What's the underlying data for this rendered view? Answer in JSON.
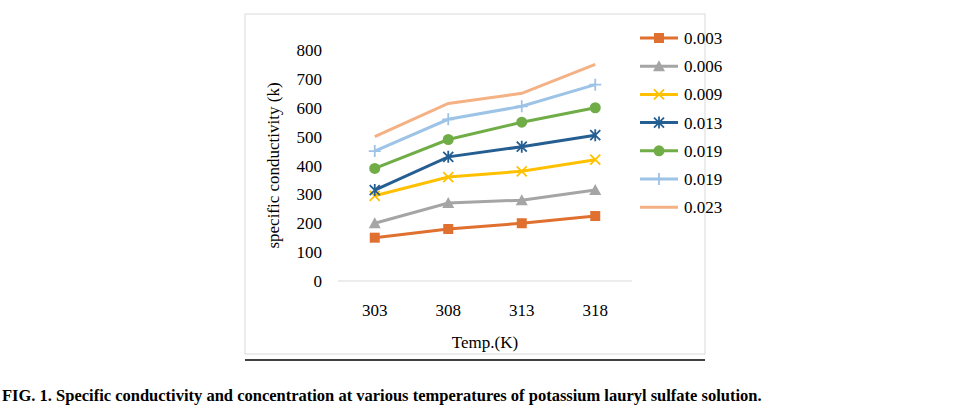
{
  "chart_data": {
    "type": "line",
    "title": "FIG. 1. Specific conductivity and concentration at various temperatures of potassium lauryl sulfate solution.",
    "x_label": "Temp.(K)",
    "y_label": "specific conductivity (k)",
    "categories": [
      "303",
      "308",
      "313",
      "318"
    ],
    "ylim": [
      0,
      800
    ],
    "yticks": [
      0,
      100,
      200,
      300,
      400,
      500,
      600,
      700,
      800
    ],
    "grid": false,
    "legend": "right",
    "series": [
      {
        "name": "0.003",
        "color": "#e07030",
        "marker": "square",
        "values": [
          150,
          180,
          200,
          225
        ]
      },
      {
        "name": "0.006",
        "color": "#a5a5a5",
        "marker": "triangle",
        "values": [
          200,
          270,
          280,
          315
        ]
      },
      {
        "name": "0.009",
        "color": "#ffc000",
        "marker": "x",
        "values": [
          295,
          360,
          380,
          420
        ]
      },
      {
        "name": "0.013",
        "color": "#255e91",
        "marker": "star",
        "values": [
          315,
          430,
          465,
          505
        ]
      },
      {
        "name": "0.019",
        "color": "#70ad47",
        "marker": "circle",
        "values": [
          390,
          490,
          550,
          600
        ]
      },
      {
        "name": "0.019",
        "color": "#9dc3e6",
        "marker": "plus",
        "values": [
          450,
          560,
          605,
          680
        ]
      },
      {
        "name": "0.023",
        "color": "#f4b183",
        "marker": "none",
        "values": [
          500,
          615,
          650,
          750
        ]
      }
    ]
  }
}
